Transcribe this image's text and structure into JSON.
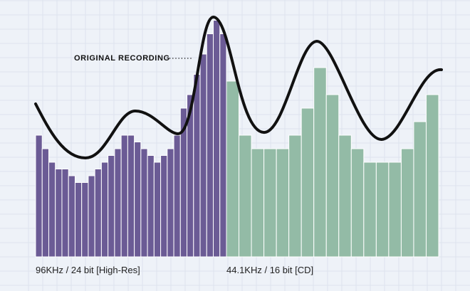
{
  "labels": {
    "original": "ORIGINAL RECORDING",
    "hires": "96KHz / 24 bit [High-Res]",
    "cd": "44.1KHz / 16 bit [CD]"
  },
  "colors": {
    "background": "#eef2f8",
    "grid": "#dde3ee",
    "hires_bars": "#6b5b95",
    "cd_bars": "#93bba6",
    "bar_separator": "#ffffff",
    "waveform": "#111111"
  },
  "chart_data": {
    "type": "bar",
    "series": [
      {
        "values": [
          9,
          8,
          7,
          6.5,
          6.5,
          6,
          5.5,
          5.5,
          6,
          6.5,
          7,
          7.5,
          8,
          9,
          9,
          8.5,
          8,
          7.5,
          7,
          7.5,
          8,
          9,
          11,
          12,
          13.5,
          15,
          16.5,
          17.5,
          16.5
        ]
      },
      {
        "values": [
          13,
          9,
          8,
          8,
          8,
          9,
          11,
          14,
          12,
          9,
          8,
          7,
          7,
          7,
          8,
          10,
          12
        ]
      }
    ],
    "ylim": [
      0,
      19
    ]
  }
}
